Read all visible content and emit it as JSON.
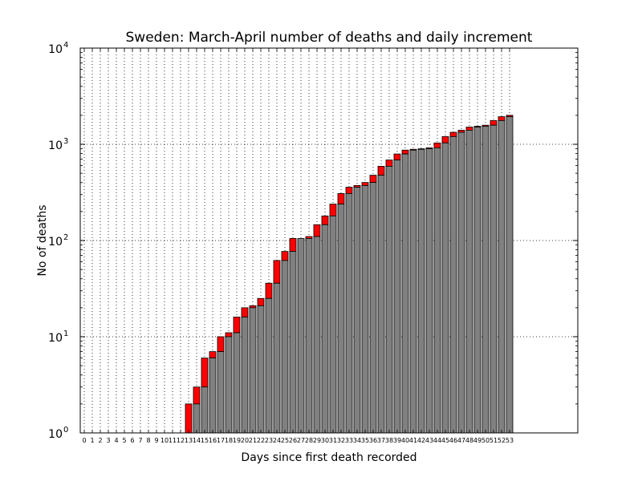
{
  "chart_data": {
    "type": "bar",
    "title": "Sweden: March-April number of deaths and daily increment",
    "xlabel": "Days since first death recorded",
    "ylabel": "No of deaths",
    "y_scale": "log",
    "ylim": [
      1,
      10000
    ],
    "y_ticks": [
      {
        "base": "10",
        "exp": "0",
        "value": 1
      },
      {
        "base": "10",
        "exp": "1",
        "value": 10
      },
      {
        "base": "10",
        "exp": "2",
        "value": 100
      },
      {
        "base": "10",
        "exp": "3",
        "value": 1000
      },
      {
        "base": "10",
        "exp": "4",
        "value": 10000
      }
    ],
    "grid": true,
    "categories": [
      "0",
      "1",
      "2",
      "3",
      "4",
      "5",
      "6",
      "7",
      "8",
      "9",
      "10",
      "11",
      "12",
      "13",
      "14",
      "15",
      "16",
      "17",
      "18",
      "19",
      "20",
      "21",
      "22",
      "23",
      "24",
      "25",
      "26",
      "27",
      "28",
      "29",
      "30",
      "31",
      "32",
      "33",
      "34",
      "35",
      "36",
      "37",
      "38",
      "39",
      "40",
      "41",
      "42",
      "43",
      "44",
      "45",
      "46",
      "47",
      "48",
      "49",
      "50",
      "51",
      "52",
      "53"
    ],
    "series": [
      {
        "role": "previous_total",
        "color": "#808080",
        "values": [
          0,
          0,
          0,
          0,
          0,
          0,
          0,
          0,
          0,
          0,
          0,
          0,
          0,
          0,
          2,
          3,
          6,
          7,
          10,
          11,
          16,
          20,
          21,
          25,
          36,
          62,
          77,
          105,
          105,
          110,
          146,
          180,
          239,
          308,
          358,
          373,
          401,
          477,
          591,
          687,
          793,
          870,
          887,
          899,
          919,
          1033,
          1203,
          1333,
          1400,
          1511,
          1540,
          1580,
          1765,
          1937
        ]
      },
      {
        "role": "daily_increment",
        "color": "#ff0000",
        "values": [
          0,
          0,
          0,
          0,
          0,
          0,
          0,
          0,
          0,
          0,
          0,
          0,
          0,
          2,
          1,
          3,
          1,
          3,
          1,
          5,
          4,
          1,
          4,
          11,
          26,
          15,
          28,
          0,
          5,
          36,
          34,
          59,
          69,
          50,
          15,
          28,
          76,
          114,
          96,
          106,
          77,
          17,
          12,
          20,
          114,
          170,
          130,
          67,
          111,
          29,
          40,
          185,
          172,
          66
        ]
      }
    ]
  }
}
